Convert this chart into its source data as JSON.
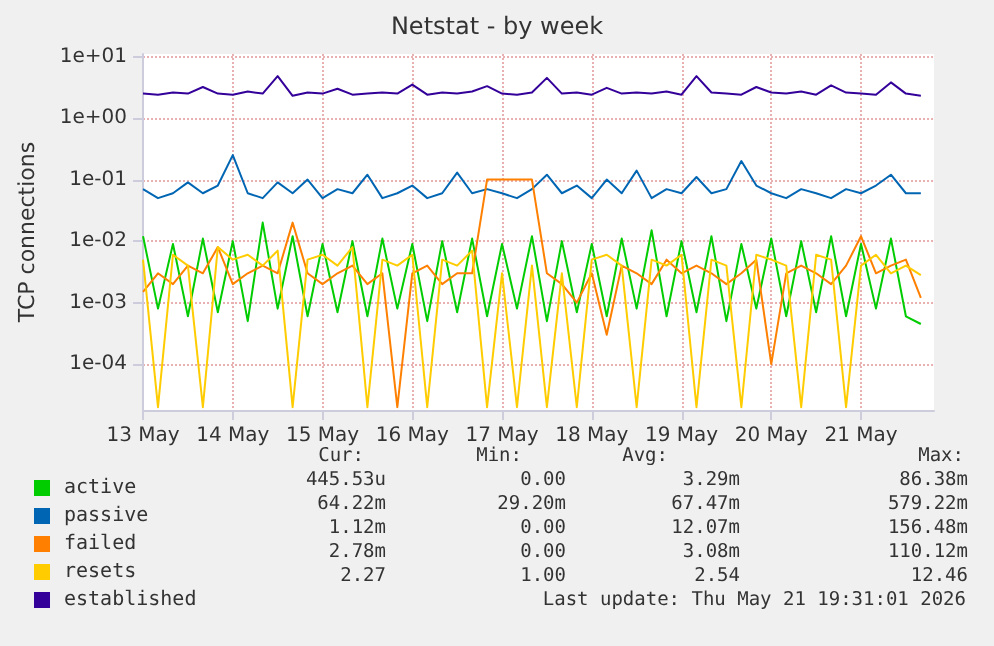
{
  "chart_data": {
    "type": "line",
    "title": "Netstat - by week",
    "ylabel": "TCP connections",
    "x": [
      "2026-05-13T00:00",
      "2026-05-13T04:00",
      "2026-05-13T08:00",
      "2026-05-13T12:00",
      "2026-05-13T16:00",
      "2026-05-13T20:00",
      "2026-05-14T00:00",
      "2026-05-14T04:00",
      "2026-05-14T08:00",
      "2026-05-14T12:00",
      "2026-05-14T16:00",
      "2026-05-14T20:00",
      "2026-05-15T00:00",
      "2026-05-15T04:00",
      "2026-05-15T08:00",
      "2026-05-15T12:00",
      "2026-05-15T16:00",
      "2026-05-15T20:00",
      "2026-05-16T00:00",
      "2026-05-16T04:00",
      "2026-05-16T08:00",
      "2026-05-16T12:00",
      "2026-05-16T16:00",
      "2026-05-16T20:00",
      "2026-05-17T00:00",
      "2026-05-17T04:00",
      "2026-05-17T08:00",
      "2026-05-17T12:00",
      "2026-05-17T16:00",
      "2026-05-17T20:00",
      "2026-05-18T00:00",
      "2026-05-18T04:00",
      "2026-05-18T08:00",
      "2026-05-18T12:00",
      "2026-05-18T16:00",
      "2026-05-18T20:00",
      "2026-05-19T00:00",
      "2026-05-19T04:00",
      "2026-05-19T08:00",
      "2026-05-19T12:00",
      "2026-05-19T16:00",
      "2026-05-19T20:00",
      "2026-05-20T00:00",
      "2026-05-20T04:00",
      "2026-05-20T08:00",
      "2026-05-20T12:00",
      "2026-05-20T16:00",
      "2026-05-20T20:00",
      "2026-05-21T00:00",
      "2026-05-21T04:00",
      "2026-05-21T08:00",
      "2026-05-21T12:00",
      "2026-05-21T16:00"
    ],
    "series": [
      {
        "name": "active",
        "color": "#00cc00",
        "values": [
          0.012,
          0.0008,
          0.009,
          0.0006,
          0.011,
          0.0007,
          0.01,
          0.0005,
          0.02,
          0.0008,
          0.012,
          0.0006,
          0.009,
          0.0007,
          0.01,
          0.0006,
          0.011,
          0.0008,
          0.009,
          0.0005,
          0.01,
          0.0007,
          0.011,
          0.0006,
          0.009,
          0.0008,
          0.012,
          0.0005,
          0.01,
          0.0007,
          0.009,
          0.0006,
          0.011,
          0.0008,
          0.015,
          0.0006,
          0.01,
          0.0007,
          0.012,
          0.0005,
          0.009,
          0.0008,
          0.011,
          0.0006,
          0.01,
          0.0007,
          0.012,
          0.0006,
          0.009,
          0.0008,
          0.011,
          0.0006,
          0.00045
        ]
      },
      {
        "name": "passive",
        "color": "#0066b3",
        "values": [
          0.07,
          0.05,
          0.06,
          0.09,
          0.06,
          0.08,
          0.25,
          0.06,
          0.05,
          0.09,
          0.06,
          0.1,
          0.05,
          0.07,
          0.06,
          0.12,
          0.05,
          0.06,
          0.08,
          0.05,
          0.06,
          0.13,
          0.06,
          0.07,
          0.06,
          0.05,
          0.07,
          0.12,
          0.06,
          0.08,
          0.05,
          0.1,
          0.06,
          0.14,
          0.05,
          0.07,
          0.06,
          0.11,
          0.06,
          0.07,
          0.2,
          0.08,
          0.06,
          0.05,
          0.07,
          0.06,
          0.05,
          0.07,
          0.06,
          0.08,
          0.12,
          0.06,
          0.06
        ]
      },
      {
        "name": "failed",
        "color": "#ff8000",
        "values": [
          0.0015,
          0.003,
          0.002,
          0.004,
          0.003,
          0.008,
          0.002,
          0.003,
          0.004,
          0.003,
          0.02,
          0.003,
          0.002,
          0.003,
          0.004,
          0.002,
          0.003,
          2e-05,
          0.003,
          0.004,
          0.002,
          0.003,
          0.003,
          0.1,
          0.1,
          0.1,
          0.1,
          0.003,
          0.002,
          0.001,
          0.003,
          0.0003,
          0.004,
          0.003,
          0.002,
          0.005,
          0.003,
          0.004,
          0.003,
          0.002,
          0.003,
          0.005,
          0.0001,
          0.003,
          0.004,
          0.003,
          0.002,
          0.004,
          0.012,
          0.003,
          0.004,
          0.005,
          0.0012
        ]
      },
      {
        "name": "resets",
        "color": "#ffcc00",
        "values": [
          0.005,
          2e-05,
          0.006,
          0.004,
          2e-05,
          0.008,
          0.005,
          0.006,
          0.004,
          0.007,
          2e-05,
          0.005,
          0.006,
          0.004,
          0.008,
          2e-05,
          0.005,
          0.004,
          0.006,
          2e-05,
          0.005,
          0.004,
          0.007,
          2e-05,
          0.003,
          2e-05,
          0.004,
          2e-05,
          0.003,
          2e-05,
          0.005,
          0.006,
          0.004,
          2e-05,
          0.005,
          0.004,
          0.006,
          2e-05,
          0.005,
          0.004,
          2e-05,
          0.006,
          0.005,
          0.004,
          2e-05,
          0.006,
          0.005,
          2e-05,
          0.004,
          0.006,
          0.003,
          0.004,
          0.0028
        ]
      },
      {
        "name": "established",
        "color": "#330099",
        "values": [
          2.5,
          2.4,
          2.6,
          2.5,
          3.2,
          2.5,
          2.4,
          2.7,
          2.5,
          4.8,
          2.3,
          2.6,
          2.5,
          3.0,
          2.4,
          2.5,
          2.6,
          2.5,
          3.5,
          2.4,
          2.6,
          2.5,
          2.7,
          3.3,
          2.5,
          2.4,
          2.6,
          4.5,
          2.5,
          2.6,
          2.4,
          3.1,
          2.5,
          2.6,
          2.5,
          2.7,
          2.4,
          4.8,
          2.6,
          2.5,
          2.4,
          3.2,
          2.6,
          2.5,
          2.7,
          2.4,
          3.4,
          2.6,
          2.5,
          2.4,
          3.8,
          2.5,
          2.3
        ]
      }
    ],
    "log": "y",
    "xlim": [
      "2026-05-13T00:00",
      "2026-05-21T19:31"
    ],
    "xticks": [
      {
        "value": "2026-05-13",
        "label": "13 May"
      },
      {
        "value": "2026-05-14",
        "label": "14 May"
      },
      {
        "value": "2026-05-15",
        "label": "15 May"
      },
      {
        "value": "2026-05-16",
        "label": "16 May"
      },
      {
        "value": "2026-05-17",
        "label": "17 May"
      },
      {
        "value": "2026-05-18",
        "label": "18 May"
      },
      {
        "value": "2026-05-19",
        "label": "19 May"
      },
      {
        "value": "2026-05-20",
        "label": "20 May"
      },
      {
        "value": "2026-05-21",
        "label": "21 May"
      }
    ],
    "ylim": [
      1.8e-05,
      11
    ],
    "yticks": [
      {
        "value": 0.0001,
        "label": "1e-04"
      },
      {
        "value": 0.001,
        "label": "1e-03"
      },
      {
        "value": 0.01,
        "label": "1e-02"
      },
      {
        "value": 0.1,
        "label": "1e-01"
      },
      {
        "value": 1,
        "label": "1e+00"
      },
      {
        "value": 10,
        "label": "1e+01"
      }
    ],
    "grid": true,
    "legend": "bottom left",
    "marker": "none",
    "line_style": "solid",
    "annotations": [
      "Cur:",
      "Min:",
      "Avg:",
      "Max:",
      "445.53u",
      "0.00",
      "3.29m",
      "86.38m",
      "64.22m",
      "29.20m",
      "67.47m",
      "579.22m",
      "1.12m",
      "0.00",
      "12.07m",
      "156.48m",
      "2.78m",
      "0.00",
      "3.08m",
      "110.12m",
      "2.27",
      "1.00",
      "2.54",
      "12.46",
      "Last update: Thu May 21 19:31:01 2026"
    ]
  }
}
